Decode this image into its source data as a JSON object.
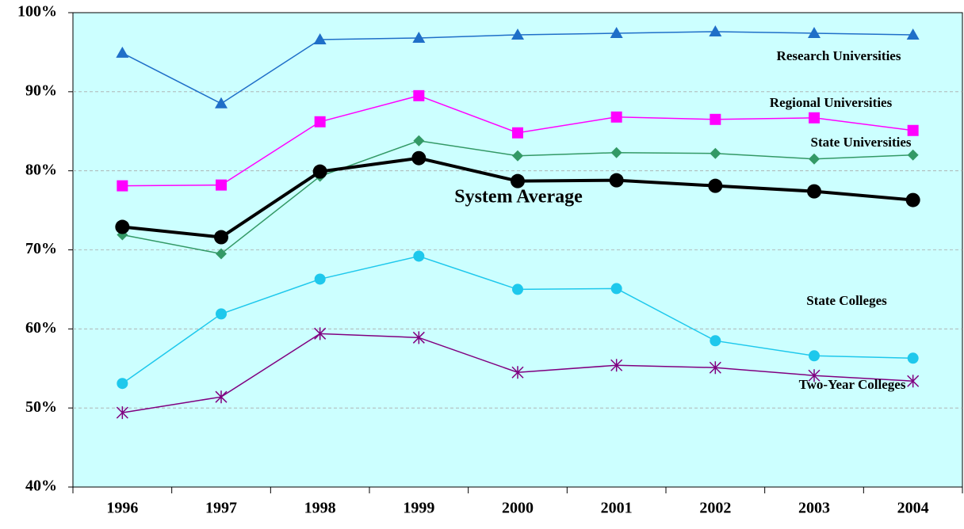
{
  "chart_data": {
    "type": "line",
    "categories": [
      "1996",
      "1997",
      "1998",
      "1999",
      "2000",
      "2001",
      "2002",
      "2003",
      "2004"
    ],
    "ylim": [
      40,
      100
    ],
    "yticks": [
      {
        "value": 40,
        "label": "40%"
      },
      {
        "value": 50,
        "label": "50%"
      },
      {
        "value": 60,
        "label": "60%"
      },
      {
        "value": 70,
        "label": "70%"
      },
      {
        "value": 80,
        "label": "80%"
      },
      {
        "value": 90,
        "label": "90%"
      },
      {
        "value": 100,
        "label": "100%"
      }
    ],
    "grid": true,
    "series": [
      {
        "name": "Research Universities",
        "color": "#1f6fc8",
        "marker": "triangle",
        "values": [
          94.9,
          88.5,
          96.6,
          96.8,
          97.2,
          97.4,
          97.6,
          97.4,
          97.2
        ]
      },
      {
        "name": "Regional Universities",
        "color": "#ff00ff",
        "marker": "square",
        "values": [
          78.1,
          78.2,
          86.2,
          89.5,
          84.8,
          86.8,
          86.5,
          86.7,
          85.1
        ]
      },
      {
        "name": "State Universities",
        "color": "#339966",
        "marker": "diamond",
        "values": [
          71.9,
          69.5,
          79.3,
          83.8,
          81.9,
          82.3,
          82.2,
          81.5,
          82.0
        ]
      },
      {
        "name": "System Average",
        "color": "#000000",
        "marker": "bigcircle",
        "values": [
          72.9,
          71.6,
          79.9,
          81.6,
          78.7,
          78.8,
          78.1,
          77.4,
          76.3
        ]
      },
      {
        "name": "State Colleges",
        "color": "#1ec8ec",
        "marker": "circle",
        "values": [
          53.1,
          61.9,
          66.3,
          69.2,
          65.0,
          65.1,
          58.5,
          56.6,
          56.3
        ]
      },
      {
        "name": "Two-Year Colleges",
        "color": "#800080",
        "marker": "star",
        "values": [
          49.4,
          51.4,
          59.4,
          58.9,
          54.5,
          55.4,
          55.1,
          54.1,
          53.4
        ]
      }
    ]
  }
}
